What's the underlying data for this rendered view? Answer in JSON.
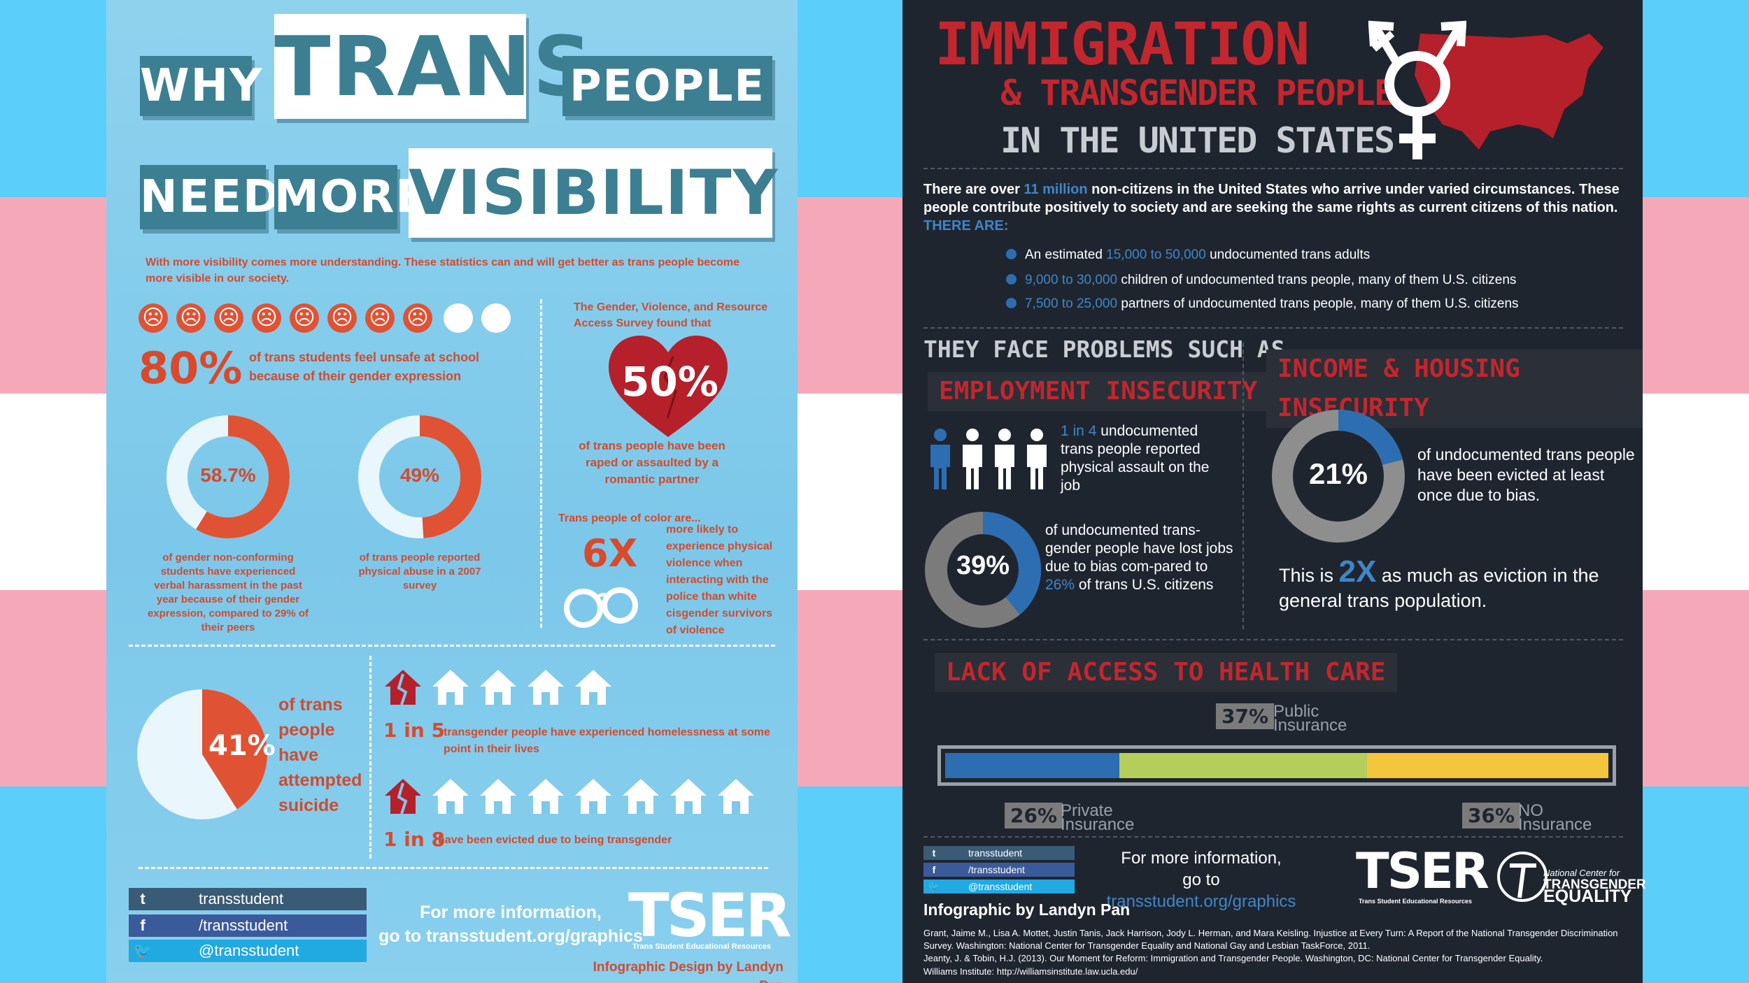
{
  "colors": {
    "flag_blue": "#5bcefa",
    "flag_pink": "#f5a9b8",
    "flag_white": "#ffffff",
    "left_red": "#d94a2c",
    "left_teal": "#3c7f92",
    "right_bg": "#1f252f",
    "right_red": "#c3262d",
    "right_blue": "#3f86c8",
    "right_green": "#b5cd5a",
    "right_yellow": "#f3c63c"
  },
  "left": {
    "title": {
      "w1": "WHY",
      "w2": "TRANS",
      "w3": "PEOPLE",
      "w4": "NEED",
      "w5": "MORE",
      "w6": "VISIBILITY"
    },
    "intro": "With more visibility comes more understanding. These statistics can and will get better as trans people become more visible in our society.",
    "unsafe": {
      "value": "80%",
      "text": "of trans students feel unsafe at school because of their gender expression",
      "sad_faces": 8,
      "happy_faces": 2
    },
    "survey": {
      "intro": "The Gender, Violence, and Resource Access Survey found that",
      "value": "50%",
      "text": "of trans people have been raped or assaulted by a romantic partner"
    },
    "donut1": {
      "value": "58.7%",
      "fraction": 0.587,
      "text": "of gender non-conforming students have experienced verbal harassment in the past year because of their gender expression, compared to 29% of their peers"
    },
    "donut2": {
      "value": "49%",
      "fraction": 0.49,
      "text": "of trans people reported physical abuse in a 2007 survey"
    },
    "police": {
      "intro": "Trans people of color are...",
      "value": "6X",
      "text": "more likely to experience physical violence when interacting with the police than white cisgender survivors of violence"
    },
    "suicide": {
      "value": "41%",
      "fraction": 0.41,
      "text": "of trans people have attempted suicide"
    },
    "homeless": {
      "value": "1 in 5",
      "text": "transgender people have experienced homelessness at some point in their lives"
    },
    "evicted": {
      "value": "1 in 8",
      "text": "have been evicted due to being transgender"
    },
    "social": {
      "tumblr_icon": "tumblr-icon",
      "tumblr": "transstudent",
      "facebook_icon": "facebook-icon",
      "facebook": "/transstudent",
      "twitter_icon": "twitter-icon",
      "twitter": "@transstudent"
    },
    "more_info": "For more information,",
    "more_info2": "go to transstudent.org/graphics",
    "logo": "TSER",
    "logo_sub": "Trans Student Educational Resources",
    "credit": "Infographic Design by Landyn Pan"
  },
  "right": {
    "title1": "IMMIGRATION",
    "title2": "& TRANSGENDER PEOPLE",
    "title3": "IN THE UNITED STATES",
    "intro": {
      "p1": "There are over ",
      "hl1": "11 million",
      "p2": " non-citizens in the United States who arrive under varied circumstances. These people contribute positively to society and are seeking the same rights as current citizens of this nation. ",
      "hl2": "THERE ARE:"
    },
    "bullets": [
      {
        "pre": "An estimated ",
        "hl": "15,000 to 50,000",
        "post": " undocumented trans adults"
      },
      {
        "pre": "",
        "hl": "9,000 to 30,000",
        "post": " children of undocumented trans people, many of them U.S. citizens"
      },
      {
        "pre": "",
        "hl": "7,500 to 25,000",
        "post": " partners of undocumented trans people, many of them U.S. citizens"
      }
    ],
    "problems_heading": "THEY FACE PROBLEMS SUCH AS...",
    "employment": {
      "heading": "EMPLOYMENT INSECURITY",
      "ratio_hl": "1 in 4",
      "ratio_text": " undocumented trans people reported physical assault on the job",
      "donut_value": "39%",
      "donut_fraction": 0.39,
      "donut_text_pre": "of undocumented trans-gender people have lost jobs due to bias com-pared to ",
      "donut_text_hl": "26%",
      "donut_text_post": " of trans U.S. citizens"
    },
    "income": {
      "heading": "INCOME & HOUSING INSECURITY",
      "donut_value": "21%",
      "donut_fraction": 0.21,
      "donut_text": "of undocumented trans people have been evicted at least once due to bias.",
      "compare_pre": "This is ",
      "compare_hl": "2X",
      "compare_post": " as much as eviction in the general trans population."
    },
    "health": {
      "heading": "LACK OF ACCESS TO HEALTH CARE",
      "public_value": "37%",
      "public_fraction": 0.37,
      "public_label1": "Public",
      "public_label2": "Insurance",
      "private_value": "26%",
      "private_fraction": 0.26,
      "private_label1": "Private",
      "private_label2": "Insurance",
      "none_value": "36%",
      "none_fraction": 0.36,
      "none_label1": "NO",
      "none_label2": "Insurance"
    },
    "social": {
      "tumblr": "transstudent",
      "facebook": "/transstudent",
      "twitter": "@transstudent"
    },
    "more_info": "For more information,",
    "more_info_pre": "go to ",
    "more_info_link": "transstudent.org/graphics",
    "logo": "TSER",
    "logo_sub": "Trans Student Educational Resources",
    "ncte1": "National Center for",
    "ncte2": "TRANSGENDER",
    "ncte3": "EQUALITY",
    "credit": "Infographic by Landyn Pan",
    "ref1": "Grant, Jaime M., Lisa A. Mottet, Justin Tanis, Jack Harrison, Jody L. Herman, and Mara Keisling. Injustice at Every Turn: A Report of the National Transgender Discrimination Survey. Washington: National Center for Transgender Equality and National Gay and Lesbian TaskForce, 2011.",
    "ref2": "Jeanty, J. & Tobin, H.J. (2013). Our Moment for Reform: Immigration and Transgender People. Washington, DC: National Center for Transgender Equality.",
    "ref3": "Williams Institute: http://williamsinstitute.law.ucla.edu/"
  }
}
